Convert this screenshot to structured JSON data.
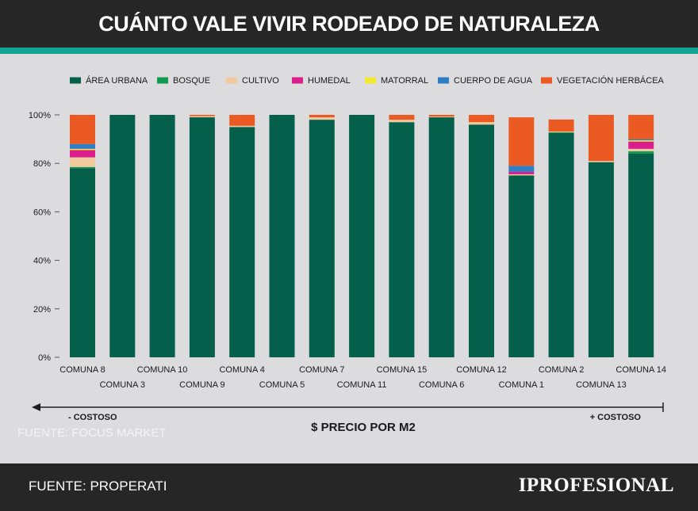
{
  "header": {
    "title": "CUÁNTO VALE VIVIR RODEADO DE NATURALEZA"
  },
  "footer": {
    "source": "FUENTE: PROPERATI",
    "brand": "IPROFESIONAL"
  },
  "chart_data": {
    "type": "bar",
    "stacked": true,
    "title": "",
    "xlabel": "$ PRECIO POR M2",
    "ylabel": "",
    "ylim": [
      0,
      100
    ],
    "yticks": [
      "0%",
      "20%",
      "40%",
      "60%",
      "80%",
      "100%"
    ],
    "grid": false,
    "legend_position": "top",
    "categories": [
      "COMUNA 8",
      "COMUNA 3",
      "COMUNA 10",
      "COMUNA 9",
      "COMUNA 4",
      "COMUNA 5",
      "COMUNA 7",
      "COMUNA 11",
      "COMUNA 15",
      "COMUNA 6",
      "COMUNA 12",
      "COMUNA 1",
      "COMUNA 2",
      "COMUNA 13",
      "COMUNA 14"
    ],
    "series": [
      {
        "name": "ÁREA URBANA",
        "color": "#045f4b",
        "values": [
          78,
          100,
          100,
          99,
          95,
          100,
          98,
          100,
          97,
          99,
          96,
          75,
          92.5,
          80.5,
          84
        ]
      },
      {
        "name": "BOSQUE",
        "color": "#129a50",
        "values": [
          0.5,
          0,
          0,
          0,
          0,
          0,
          0,
          0,
          0,
          0,
          0,
          0,
          0.3,
          0,
          1
        ]
      },
      {
        "name": "CULTIVO",
        "color": "#f0c99c",
        "values": [
          4,
          0,
          0,
          0.5,
          0.5,
          0,
          1,
          0,
          1,
          0.3,
          1,
          0.5,
          0.3,
          0.5,
          1
        ]
      },
      {
        "name": "HUMEDAL",
        "color": "#db1e8c",
        "values": [
          3,
          0,
          0,
          0,
          0,
          0,
          0,
          0,
          0,
          0,
          0,
          1,
          0,
          0,
          3
        ]
      },
      {
        "name": "MATORRAL",
        "color": "#f3e830",
        "values": [
          0.5,
          0,
          0,
          0,
          0,
          0,
          0,
          0,
          0,
          0,
          0,
          0,
          0,
          0,
          0.5
        ]
      },
      {
        "name": "CUERPO DE AGUA",
        "color": "#2e7ec4",
        "values": [
          2,
          0,
          0,
          0,
          0,
          0,
          0,
          0,
          0,
          0,
          0,
          2.5,
          0,
          0,
          0.5
        ]
      },
      {
        "name": "VEGETACIÓN HERBÁCEA",
        "color": "#ec5a24",
        "values": [
          12,
          0,
          0,
          0.5,
          4.5,
          0,
          1,
          0,
          2,
          0.7,
          3,
          20,
          5,
          19,
          10
        ]
      }
    ],
    "axis_arrow": {
      "left_label": "- COSTOSO",
      "right_label": "+ COSTOSO"
    },
    "annotation": "FUENTE: FOCUS MARKET"
  }
}
